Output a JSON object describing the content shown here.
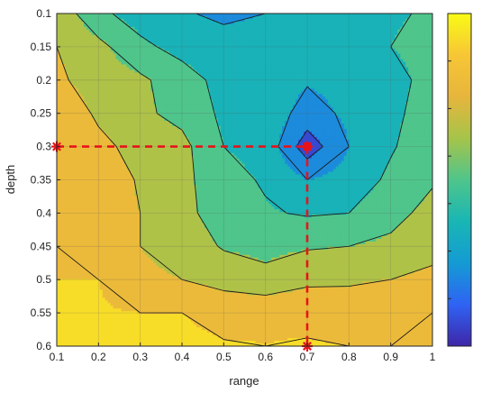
{
  "chart_data": {
    "type": "heatmap",
    "subtype": "filled-contour",
    "title": "",
    "xlabel": "range",
    "ylabel": "depth",
    "xlim": [
      0.1,
      1
    ],
    "ylim": [
      0.6,
      0.1
    ],
    "y_reversed": true,
    "grid": true,
    "x_ticks": [
      "0.1",
      "0.2",
      "0.3",
      "0.4",
      "0.5",
      "0.6",
      "0.7",
      "0.8",
      "0.9",
      "1"
    ],
    "y_ticks": [
      "0.1",
      "0.15",
      "0.2",
      "0.25",
      "0.3",
      "0.35",
      "0.4",
      "0.45",
      "0.5",
      "0.55",
      "0.6"
    ],
    "colormap": [
      "#3e26a8",
      "#2f63f4",
      "#149bd3",
      "#19b6b4",
      "#4fc58b",
      "#a6c44a",
      "#e7b53c",
      "#f7c636",
      "#f9fb15"
    ],
    "colorbar": {
      "placement": "right",
      "tick_labels_visible": false
    },
    "x": [
      0.1,
      0.2,
      0.3,
      0.4,
      0.5,
      0.6,
      0.7,
      0.8,
      0.9,
      1.0
    ],
    "y": [
      0.1,
      0.15,
      0.2,
      0.25,
      0.3,
      0.35,
      0.4,
      0.45,
      0.5,
      0.55,
      0.6
    ],
    "z": [
      [
        4.7,
        3.2,
        2.6,
        2.1,
        1.8,
        2.0,
        2.6,
        2.8,
        2.9,
        3.1
      ],
      [
        5.0,
        4.3,
        3.2,
        2.7,
        2.4,
        2.4,
        2.8,
        2.9,
        3.0,
        3.3
      ],
      [
        5.2,
        4.5,
        4.2,
        3.4,
        2.7,
        2.5,
        2.1,
        2.3,
        2.7,
        3.3
      ],
      [
        5.9,
        4.8,
        4.2,
        3.7,
        2.8,
        2.6,
        1.6,
        2.2,
        2.8,
        3.4
      ],
      [
        6.0,
        5.3,
        4.6,
        4.3,
        3.0,
        2.7,
        0.4,
        2.0,
        2.9,
        3.6
      ],
      [
        6.0,
        5.6,
        4.9,
        4.3,
        3.3,
        2.9,
        2.0,
        2.4,
        3.2,
        3.9
      ],
      [
        6.0,
        5.3,
        5.0,
        4.3,
        3.5,
        3.1,
        2.9,
        3.0,
        3.7,
        4.3
      ],
      [
        6.0,
        5.6,
        5.0,
        4.6,
        3.9,
        3.8,
        3.9,
        4.0,
        4.2,
        4.6
      ],
      [
        6.0,
        6.0,
        5.2,
        5.0,
        4.7,
        4.2,
        4.8,
        4.9,
        5.0,
        5.3
      ],
      [
        6.2,
        6.1,
        6.0,
        6.0,
        5.6,
        5.9,
        5.7,
        5.4,
        5.9,
        6.0
      ],
      [
        6.8,
        6.6,
        6.5,
        6.3,
        6.1,
        6.0,
        6.1,
        6.0,
        6.0,
        6.0
      ]
    ],
    "levels": [
      0,
      1,
      2,
      3,
      4,
      5,
      6,
      7
    ],
    "marker": {
      "x": 0.7,
      "y": 0.3,
      "color": "#e8131a"
    },
    "crosshair": {
      "style": "dashed",
      "color": "#e8131a"
    }
  }
}
